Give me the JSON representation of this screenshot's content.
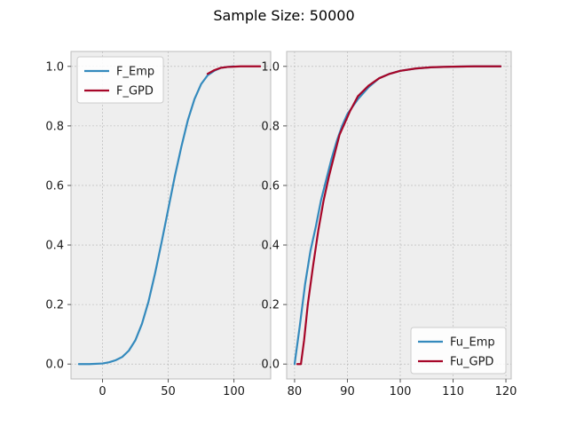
{
  "title": "Sample Size: 50000",
  "colors": {
    "emp": "#348ABD",
    "gpd": "#A60628",
    "panel": "#EEEEEE",
    "grid": "#B2B2B2",
    "axis": "#BCBCBC"
  },
  "chart_data": [
    {
      "type": "line",
      "xlim": [
        -24,
        128
      ],
      "ylim": [
        -0.05,
        1.05
      ],
      "xticks": [
        0,
        50,
        100
      ],
      "yticks": [
        0.0,
        0.2,
        0.4,
        0.6,
        0.8,
        1.0
      ],
      "grid": true,
      "legend_position": "top-left",
      "series": [
        {
          "name": "F_Emp",
          "color": "#348ABD",
          "x": [
            -18,
            -10,
            0,
            5,
            10,
            15,
            20,
            25,
            30,
            35,
            40,
            45,
            50,
            55,
            60,
            65,
            70,
            75,
            80,
            85,
            90,
            95,
            100
          ],
          "y": [
            0.0,
            0.0,
            0.002,
            0.006,
            0.013,
            0.024,
            0.045,
            0.08,
            0.135,
            0.21,
            0.305,
            0.41,
            0.52,
            0.63,
            0.73,
            0.82,
            0.89,
            0.94,
            0.97,
            0.985,
            0.995,
            0.998,
            1.0
          ]
        },
        {
          "name": "F_GPD",
          "color": "#A60628",
          "x": [
            80,
            85,
            90,
            95,
            100,
            105,
            110,
            115,
            120
          ],
          "y": [
            0.975,
            0.987,
            0.995,
            0.998,
            0.999,
            1.0,
            1.0,
            1.0,
            1.0
          ]
        }
      ]
    },
    {
      "type": "line",
      "xlim": [
        78.5,
        121
      ],
      "ylim": [
        -0.05,
        1.05
      ],
      "xticks": [
        80,
        90,
        100,
        110,
        120
      ],
      "yticks": [
        0.0,
        0.2,
        0.4,
        0.6,
        0.8,
        1.0
      ],
      "grid": true,
      "legend_position": "bottom-right",
      "series": [
        {
          "name": "Fu_Emp",
          "color": "#348ABD",
          "x": [
            80,
            81,
            82,
            83,
            84,
            85,
            86,
            87,
            88,
            89,
            90,
            92,
            94,
            96,
            98,
            100,
            103,
            106,
            110,
            114,
            119
          ],
          "y": [
            0.0,
            0.13,
            0.27,
            0.38,
            0.46,
            0.55,
            0.62,
            0.69,
            0.75,
            0.8,
            0.84,
            0.89,
            0.93,
            0.96,
            0.975,
            0.985,
            0.993,
            0.997,
            0.999,
            1.0,
            1.0
          ]
        },
        {
          "name": "Fu_GPD",
          "color": "#A60628",
          "x": [
            80.5,
            80.7,
            81.2,
            81.8,
            82.5,
            83.5,
            84.5,
            85.5,
            86.5,
            87.5,
            88.5,
            89.5,
            90.5,
            92,
            94,
            96,
            98,
            100,
            103,
            106,
            110,
            114,
            119
          ],
          "y": [
            0.0,
            0.0,
            0.0,
            0.08,
            0.2,
            0.33,
            0.45,
            0.55,
            0.63,
            0.7,
            0.77,
            0.81,
            0.85,
            0.9,
            0.935,
            0.96,
            0.975,
            0.985,
            0.993,
            0.997,
            0.999,
            1.0,
            1.0
          ]
        }
      ]
    }
  ]
}
